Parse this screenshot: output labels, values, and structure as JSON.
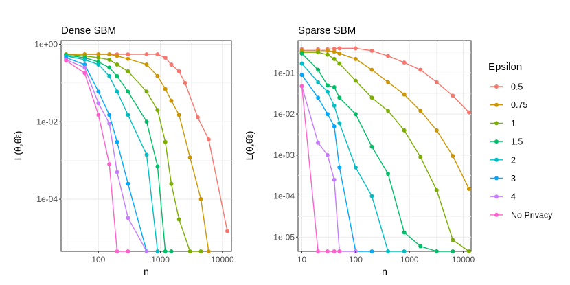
{
  "legend": {
    "title": "Epsilon",
    "entries": [
      {
        "name": "0.5",
        "color": "#F8766D"
      },
      {
        "name": "0.75",
        "color": "#CD9600"
      },
      {
        "name": "1",
        "color": "#7CAE00"
      },
      {
        "name": "1.5",
        "color": "#00BE67"
      },
      {
        "name": "2",
        "color": "#00BFC4"
      },
      {
        "name": "3",
        "color": "#00A9FF"
      },
      {
        "name": "4",
        "color": "#C77CFF"
      },
      {
        "name": "No Privacy",
        "color": "#FF61CC"
      }
    ]
  },
  "chart_data": [
    {
      "type": "line",
      "title": "Dense SBM",
      "xlabel": "n",
      "ylabel": "L(θ,θ̂ε)",
      "xscale": "log",
      "yscale": "log",
      "xlim": [
        25,
        14000
      ],
      "ylim": [
        4.5e-06,
        1.25
      ],
      "xticks": [
        {
          "value": 100,
          "label": "100"
        },
        {
          "value": 1000,
          "label": "1000"
        },
        {
          "value": 10000,
          "label": "10000"
        }
      ],
      "yticks": [
        {
          "value": 1,
          "label": "1e+00"
        },
        {
          "value": 0.01,
          "label": "1e-02"
        },
        {
          "value": 0.0001,
          "label": "1e-04"
        }
      ],
      "series": [
        {
          "name": "0.5",
          "x": [
            30,
            60,
            100,
            150,
            200,
            300,
            600,
            900,
            1200,
            1500,
            2000,
            2500,
            4000,
            6000,
            12000
          ],
          "y": [
            0.55,
            0.55,
            0.55,
            0.55,
            0.55,
            0.55,
            0.55,
            0.55,
            0.45,
            0.3,
            0.2,
            0.1,
            0.013,
            0.0035,
            1.5e-05
          ]
        },
        {
          "name": "0.75",
          "x": [
            30,
            60,
            100,
            150,
            200,
            300,
            600,
            900,
            1200,
            1500,
            2000,
            3000,
            4500,
            6000
          ],
          "y": [
            0.55,
            0.55,
            0.55,
            0.55,
            0.5,
            0.42,
            0.3,
            0.15,
            0.07,
            0.035,
            0.015,
            0.0012,
            0.0001,
            4.5e-06
          ]
        },
        {
          "name": "1",
          "x": [
            30,
            60,
            100,
            150,
            200,
            300,
            600,
            900,
            1200,
            1500,
            2000,
            3000,
            4500
          ],
          "y": [
            0.55,
            0.5,
            0.45,
            0.4,
            0.3,
            0.2,
            0.06,
            0.02,
            0.003,
            0.00025,
            3e-05,
            4.5e-06,
            4.5e-06
          ]
        },
        {
          "name": "1.5",
          "x": [
            30,
            60,
            100,
            150,
            200,
            300,
            600,
            900,
            1200,
            1500
          ],
          "y": [
            0.52,
            0.45,
            0.35,
            0.25,
            0.15,
            0.06,
            0.01,
            0.0007,
            4.5e-06,
            4.5e-06
          ]
        },
        {
          "name": "2",
          "x": [
            30,
            60,
            100,
            150,
            200,
            300,
            600,
            900
          ],
          "y": [
            0.5,
            0.4,
            0.3,
            0.15,
            0.06,
            0.015,
            0.0014,
            4.5e-06
          ]
        },
        {
          "name": "3",
          "x": [
            30,
            60,
            100,
            150,
            200,
            300,
            600
          ],
          "y": [
            0.45,
            0.3,
            0.06,
            0.015,
            0.003,
            0.00025,
            4.5e-06
          ]
        },
        {
          "name": "4",
          "x": [
            30,
            60,
            100,
            150,
            200,
            300,
            600
          ],
          "y": [
            0.4,
            0.25,
            0.03,
            0.009,
            0.0005,
            3.3e-05,
            4.5e-06
          ]
        },
        {
          "name": "No Privacy",
          "x": [
            30,
            60,
            100,
            150,
            200,
            300
          ],
          "y": [
            0.38,
            0.18,
            0.015,
            0.0008,
            4.5e-06,
            4.5e-06
          ]
        }
      ]
    },
    {
      "type": "line",
      "title": "Sparse SBM",
      "xlabel": "n",
      "ylabel": "L(θ,θ̂ε)",
      "xscale": "log",
      "yscale": "log",
      "xlim": [
        8.5,
        14000
      ],
      "ylim": [
        4.5e-06,
        0.62
      ],
      "xticks": [
        {
          "value": 10,
          "label": "10"
        },
        {
          "value": 100,
          "label": "100"
        },
        {
          "value": 1000,
          "label": "1000"
        },
        {
          "value": 10000,
          "label": "10000"
        }
      ],
      "yticks": [
        {
          "value": 0.1,
          "label": "1e-01"
        },
        {
          "value": 0.01,
          "label": "1e-02"
        },
        {
          "value": 0.001,
          "label": "1e-03"
        },
        {
          "value": 0.0001,
          "label": "1e-04"
        },
        {
          "value": 1e-05,
          "label": "1e-05"
        }
      ],
      "series": [
        {
          "name": "0.5",
          "x": [
            10,
            20,
            30,
            40,
            50,
            100,
            200,
            400,
            800,
            1600,
            3200,
            6400,
            12800
          ],
          "y": [
            0.38,
            0.38,
            0.38,
            0.39,
            0.4,
            0.4,
            0.35,
            0.26,
            0.18,
            0.12,
            0.06,
            0.028,
            0.011
          ]
        },
        {
          "name": "0.75",
          "x": [
            10,
            20,
            30,
            40,
            50,
            100,
            200,
            400,
            800,
            1600,
            3200,
            6400,
            12800
          ],
          "y": [
            0.35,
            0.35,
            0.35,
            0.33,
            0.3,
            0.22,
            0.12,
            0.06,
            0.03,
            0.012,
            0.004,
            0.00095,
            0.00015
          ]
        },
        {
          "name": "1",
          "x": [
            10,
            20,
            30,
            40,
            50,
            100,
            200,
            400,
            800,
            1600,
            3200,
            6400,
            12800
          ],
          "y": [
            0.32,
            0.32,
            0.28,
            0.22,
            0.17,
            0.065,
            0.025,
            0.012,
            0.004,
            0.0009,
            0.00014,
            8.5e-06,
            4.5e-06
          ]
        },
        {
          "name": "1.5",
          "x": [
            10,
            20,
            30,
            40,
            50,
            100,
            200,
            400,
            800,
            1600,
            3200,
            6400
          ],
          "y": [
            0.3,
            0.12,
            0.05,
            0.045,
            0.025,
            0.01,
            0.0016,
            0.00035,
            1.3e-05,
            6e-06,
            4.5e-06,
            4.5e-06
          ]
        },
        {
          "name": "2",
          "x": [
            10,
            20,
            30,
            40,
            50,
            100,
            200,
            400,
            800
          ],
          "y": [
            0.17,
            0.06,
            0.035,
            0.016,
            0.006,
            0.0005,
            0.0001,
            4.5e-06,
            4.5e-06
          ]
        },
        {
          "name": "3",
          "x": [
            10,
            20,
            30,
            40,
            50,
            100,
            200
          ],
          "y": [
            0.09,
            0.025,
            0.01,
            0.005,
            0.0005,
            4.5e-06,
            4.5e-06
          ]
        },
        {
          "name": "4",
          "x": [
            10,
            20,
            30,
            40,
            50,
            100
          ],
          "y": [
            0.048,
            0.002,
            0.001,
            0.00025,
            4.5e-06,
            4.5e-06
          ]
        },
        {
          "name": "No Privacy",
          "x": [
            10,
            20,
            30,
            40,
            50
          ],
          "y": [
            0.048,
            4.5e-06,
            4.5e-06,
            4.5e-06,
            4.5e-06
          ]
        }
      ]
    }
  ]
}
